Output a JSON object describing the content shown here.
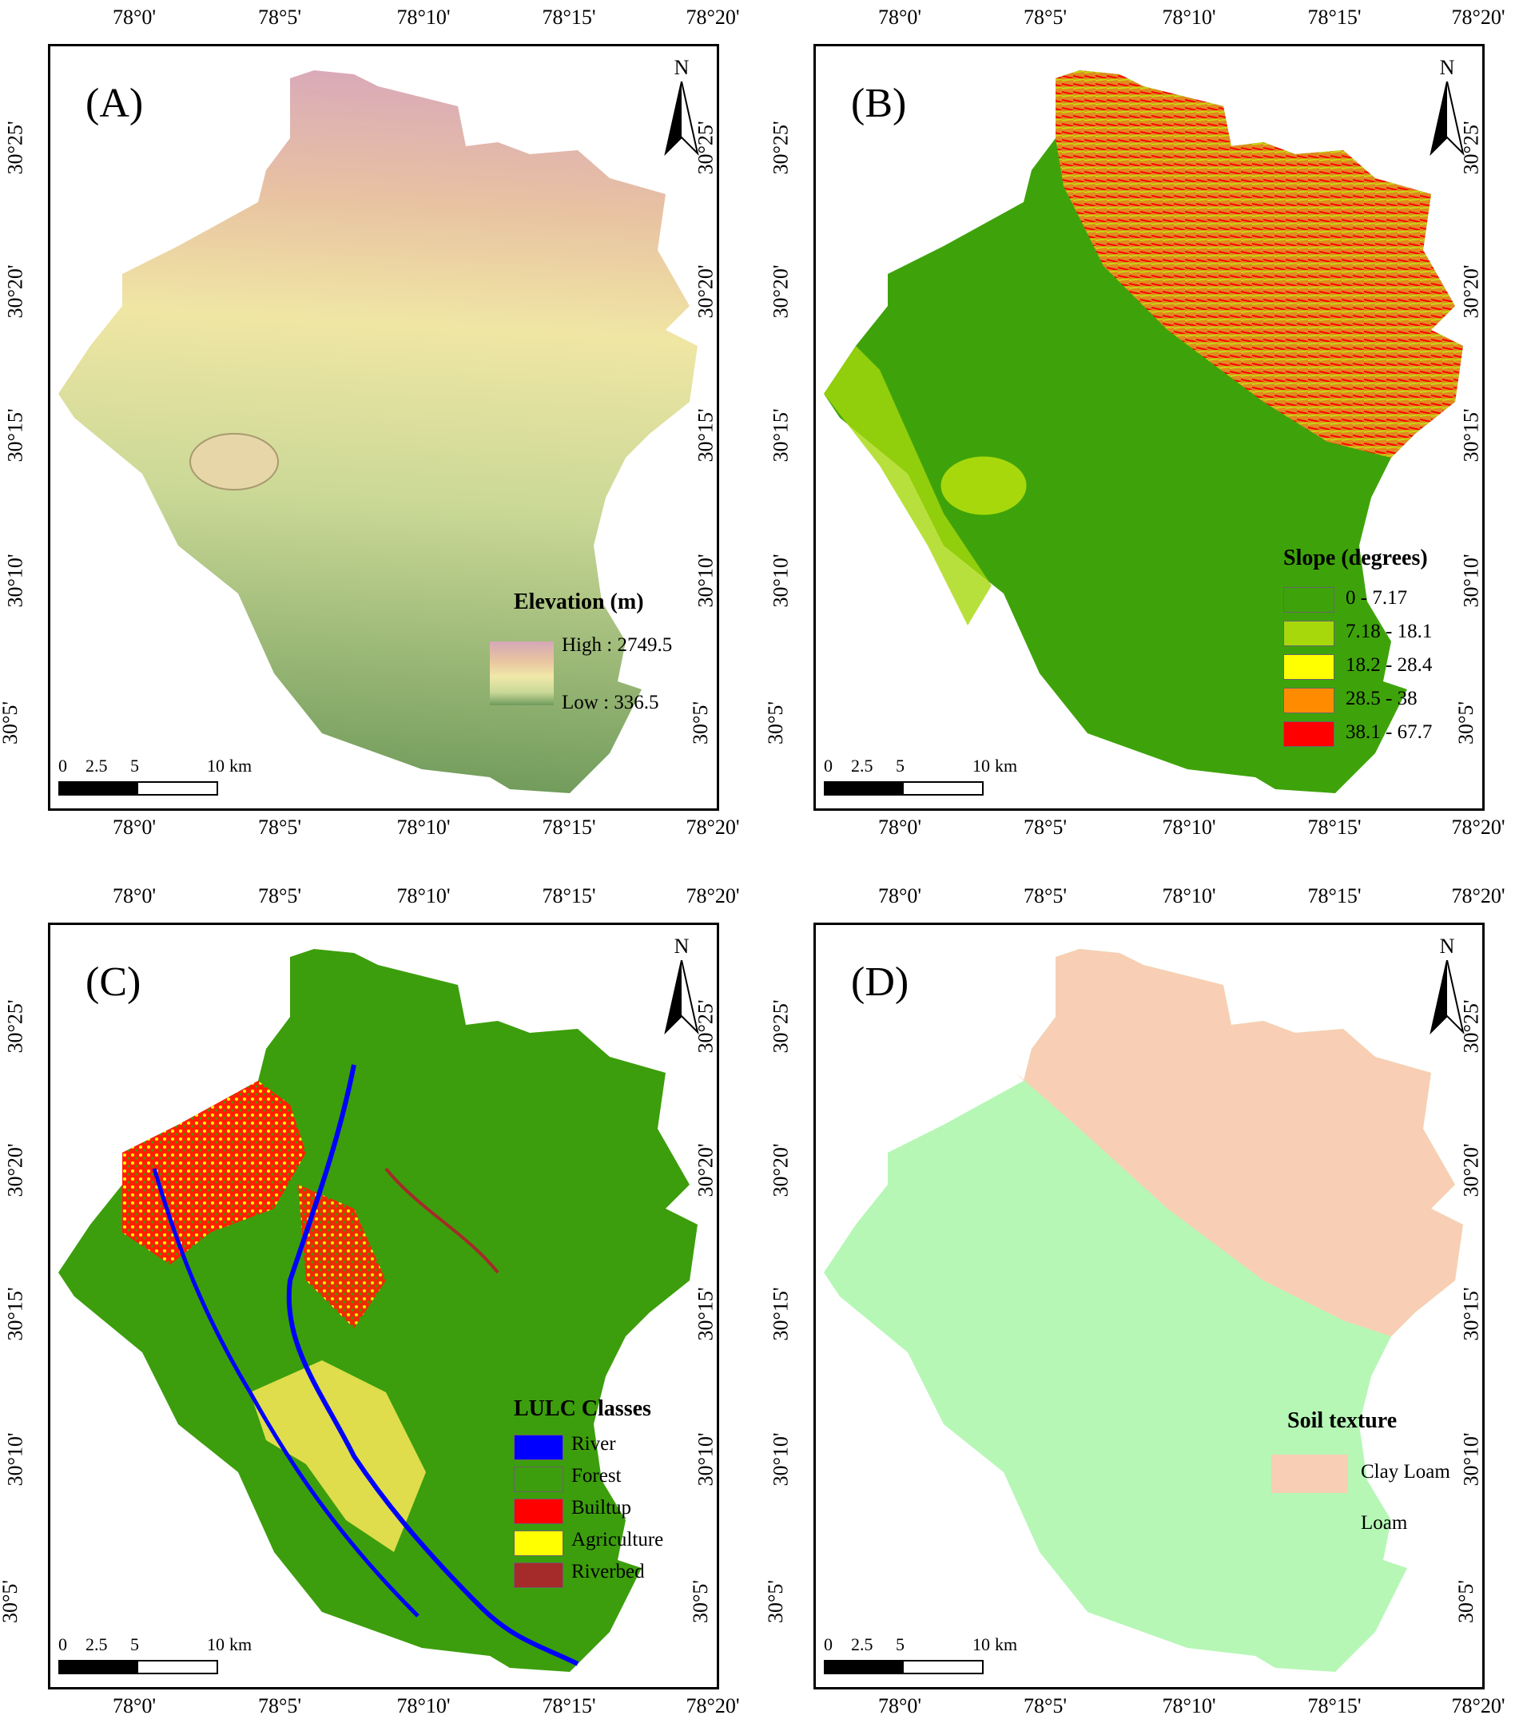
{
  "lon_ticks": [
    "78°0'",
    "78°5'",
    "78°10'",
    "78°15'",
    "78°20'"
  ],
  "lat_ticks": [
    "30°25'",
    "30°20'",
    "30°15'",
    "30°10'",
    "30°5'"
  ],
  "north_label": "N",
  "scale": {
    "t0": "0",
    "t1": "2.5",
    "t2": "5",
    "t3": "10",
    "unit": "km"
  },
  "panels": [
    {
      "id": "A",
      "label": "(A)",
      "legend": {
        "title": "Elevation (m)",
        "high": "High : 2749.5",
        "low": "Low : 336.5",
        "ramp_colors": [
          "#d4a8b8",
          "#e8c4a0",
          "#f0e8a8",
          "#c8d898",
          "#6e9a5a"
        ]
      }
    },
    {
      "id": "B",
      "label": "(B)",
      "legend": {
        "title": "Slope (degrees)",
        "classes": [
          {
            "label": "0 - 7.17",
            "color": "#3ea30a"
          },
          {
            "label": "7.18 - 18.1",
            "color": "#a6d80c"
          },
          {
            "label": "18.2 - 28.4",
            "color": "#ffff00"
          },
          {
            "label": "28.5 - 38",
            "color": "#ff8c00"
          },
          {
            "label": "38.1 - 67.7",
            "color": "#ff0000"
          }
        ]
      }
    },
    {
      "id": "C",
      "label": "(C)",
      "legend": {
        "title": "LULC Classes",
        "classes": [
          {
            "label": "River",
            "color": "#0000ff"
          },
          {
            "label": "Forest",
            "color": "#3c9e0c"
          },
          {
            "label": "Builtup",
            "color": "#ff0000"
          },
          {
            "label": "Agriculture",
            "color": "#ffff00"
          },
          {
            "label": "Riverbed",
            "color": "#a52a2a"
          }
        ]
      }
    },
    {
      "id": "D",
      "label": "(D)",
      "legend": {
        "title": "Soil texture",
        "classes": [
          {
            "label": "Clay Loam",
            "color": "#f8cfb4"
          },
          {
            "label": "Loam",
            "color": "#b6f7b6"
          }
        ]
      }
    }
  ]
}
